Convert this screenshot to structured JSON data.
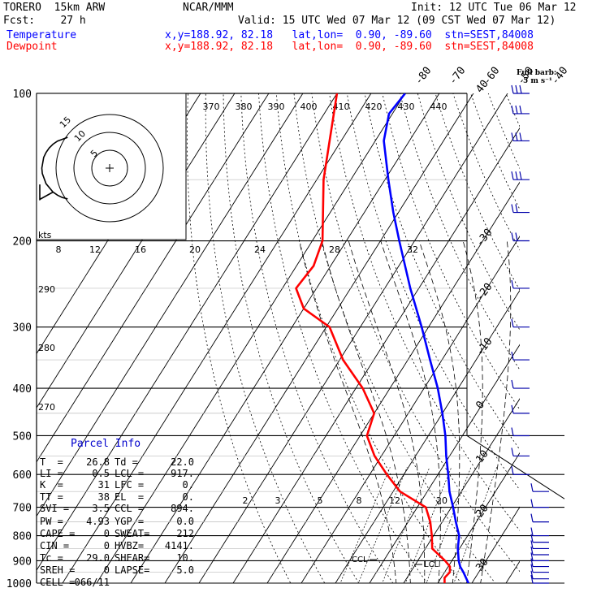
{
  "header": {
    "model": "TORERO  15km ARW",
    "org": "NCAR/MMM",
    "init": "Init: 12 UTC Tue 06 Mar 12",
    "fcst": "Fcst:    27 h",
    "valid": "Valid: 15 UTC Wed 07 Mar 12 (09 CST Wed 07 Mar 12)",
    "temperature_label": "Temperature",
    "dewpoint_label": "Dewpoint",
    "location": "x,y=188.92, 82.18   lat,lon=  0.90, -89.60  stn=SEST,84008"
  },
  "wind_legend": {
    "line1": "Full barb:",
    "line2": "5 m s⁻¹"
  },
  "hodograph": {
    "units_label": "kts",
    "ring_labels": [
      "5",
      "10",
      "15"
    ]
  },
  "parcel": {
    "title": "Parcel Info",
    "rows": [
      {
        "l1": "T  =",
        "v1": "26.8",
        "l2": "Td =",
        "v2": "22.0"
      },
      {
        "l1": "LI =",
        "v1": "0.5",
        "l2": "LCL =",
        "v2": "917."
      },
      {
        "l1": "K  =",
        "v1": "31",
        "l2": "LFC =",
        "v2": "0."
      },
      {
        "l1": "TT =",
        "v1": "38",
        "l2": "EL  =",
        "v2": "0."
      },
      {
        "l1": "SVI =",
        "v1": "3.5",
        "l2": "CCL =",
        "v2": "894."
      },
      {
        "l1": "PW =",
        "v1": "4.93",
        "l2": "YGP =",
        "v2": "0.0"
      },
      {
        "l1": "CAPE =",
        "v1": "0",
        "l2": "SWEAT=",
        "v2": "212"
      },
      {
        "l1": "CIN =",
        "v1": "0",
        "l2": "HVBZ=",
        "v2": "4141."
      },
      {
        "l1": "Tc =",
        "v1": "29.0",
        "l2": "SHEAR=",
        "v2": "10."
      },
      {
        "l1": "SREH =",
        "v1": "0",
        "l2": "LAPSE=",
        "v2": "5.0"
      },
      {
        "l1": "CELL =",
        "v1": "066/11",
        "l2": "",
        "v2": ""
      }
    ]
  },
  "colors": {
    "temperature": "#0000ff",
    "dewpoint": "#ff0000",
    "frame": "#000000"
  },
  "chart_data": {
    "type": "line",
    "subtype": "skew-T log-P sounding",
    "pressure_levels": [
      100,
      200,
      300,
      400,
      500,
      600,
      700,
      800,
      900,
      1000
    ],
    "pressure_labels": [
      "100",
      "200",
      "300",
      "400",
      "500",
      "600",
      "700",
      "800",
      "900",
      "1000"
    ],
    "isotherm_labels": [
      "-80",
      "-70",
      "-60",
      "-50",
      "-40",
      "-30",
      "-20",
      "-10",
      "0",
      "10",
      "20",
      "30",
      "40"
    ],
    "isotherm_values": [
      -80,
      -70,
      -60,
      -50,
      -40,
      -30,
      -20,
      -10,
      0,
      10,
      20,
      30,
      40
    ],
    "theta_labels": [
      "370",
      "380",
      "390",
      "400",
      "410",
      "420",
      "430",
      "440",
      "290",
      "280",
      "270"
    ],
    "mixing_ratio_labels": [
      "2",
      "3",
      "5",
      "8",
      "12",
      "20"
    ],
    "wind_speed_scale": [
      "8",
      "12",
      "16",
      "20",
      "24",
      "28",
      "32"
    ],
    "annotations": [
      "CCL",
      "LCL"
    ],
    "series": [
      {
        "name": "Temperature",
        "color": "#0000ff",
        "points": [
          {
            "p": 1000,
            "t": 29.0
          },
          {
            "p": 950,
            "t": 25.5
          },
          {
            "p": 925,
            "t": 23.5
          },
          {
            "p": 900,
            "t": 22.0
          },
          {
            "p": 850,
            "t": 19.5
          },
          {
            "p": 800,
            "t": 17.5
          },
          {
            "p": 750,
            "t": 14.0
          },
          {
            "p": 700,
            "t": 10.5
          },
          {
            "p": 650,
            "t": 6.5
          },
          {
            "p": 600,
            "t": 3.0
          },
          {
            "p": 550,
            "t": -1.0
          },
          {
            "p": 500,
            "t": -5.0
          },
          {
            "p": 450,
            "t": -10.0
          },
          {
            "p": 400,
            "t": -16.0
          },
          {
            "p": 350,
            "t": -23.5
          },
          {
            "p": 300,
            "t": -32.0
          },
          {
            "p": 250,
            "t": -42.5
          },
          {
            "p": 200,
            "t": -54.5
          },
          {
            "p": 175,
            "t": -61.5
          },
          {
            "p": 150,
            "t": -69.0
          },
          {
            "p": 125,
            "t": -77.5
          },
          {
            "p": 110,
            "t": -81.0
          },
          {
            "p": 100,
            "t": -80.0
          }
        ]
      },
      {
        "name": "Dewpoint",
        "color": "#ff0000",
        "points": [
          {
            "p": 1000,
            "t": 22.0
          },
          {
            "p": 975,
            "t": 21.0
          },
          {
            "p": 950,
            "t": 21.5
          },
          {
            "p": 925,
            "t": 20.5
          },
          {
            "p": 900,
            "t": 18.0
          },
          {
            "p": 850,
            "t": 12.0
          },
          {
            "p": 800,
            "t": 9.5
          },
          {
            "p": 750,
            "t": 6.5
          },
          {
            "p": 700,
            "t": 2.5
          },
          {
            "p": 650,
            "t": -8.0
          },
          {
            "p": 600,
            "t": -15.0
          },
          {
            "p": 550,
            "t": -22.0
          },
          {
            "p": 500,
            "t": -28.0
          },
          {
            "p": 450,
            "t": -30.0
          },
          {
            "p": 400,
            "t": -38.0
          },
          {
            "p": 350,
            "t": -49.0
          },
          {
            "p": 300,
            "t": -59.0
          },
          {
            "p": 275,
            "t": -70.0
          },
          {
            "p": 250,
            "t": -76.0
          },
          {
            "p": 225,
            "t": -75.0
          },
          {
            "p": 200,
            "t": -77.0
          },
          {
            "p": 150,
            "t": -88.0
          },
          {
            "p": 100,
            "t": -100.0
          }
        ]
      }
    ],
    "winds": [
      {
        "p": 1000,
        "speed_ms": 5,
        "dir": 170
      },
      {
        "p": 980,
        "speed_ms": 5,
        "dir": 150
      },
      {
        "p": 950,
        "speed_ms": 5,
        "dir": 150
      },
      {
        "p": 925,
        "speed_ms": 5,
        "dir": 140
      },
      {
        "p": 900,
        "speed_ms": 5,
        "dir": 140
      },
      {
        "p": 875,
        "speed_ms": 5,
        "dir": 130
      },
      {
        "p": 850,
        "speed_ms": 5,
        "dir": 120
      },
      {
        "p": 825,
        "speed_ms": 5,
        "dir": 110
      },
      {
        "p": 800,
        "speed_ms": 5,
        "dir": 110
      },
      {
        "p": 750,
        "speed_ms": 5,
        "dir": 90
      },
      {
        "p": 700,
        "speed_ms": 5,
        "dir": 80
      },
      {
        "p": 650,
        "speed_ms": 5,
        "dir": 60
      },
      {
        "p": 600,
        "speed_ms": 5,
        "dir": 40
      },
      {
        "p": 550,
        "speed_ms": 5,
        "dir": 30
      },
      {
        "p": 500,
        "speed_ms": 5,
        "dir": 20
      },
      {
        "p": 450,
        "speed_ms": 5,
        "dir": 10
      },
      {
        "p": 400,
        "speed_ms": 5,
        "dir": 20
      },
      {
        "p": 350,
        "speed_ms": 5,
        "dir": 30
      },
      {
        "p": 300,
        "speed_ms": 5,
        "dir": 30
      },
      {
        "p": 250,
        "speed_ms": 5,
        "dir": 40
      },
      {
        "p": 200,
        "speed_ms": 10,
        "dir": 60
      },
      {
        "p": 175,
        "speed_ms": 10,
        "dir": 70
      },
      {
        "p": 150,
        "speed_ms": 15,
        "dir": 80
      },
      {
        "p": 125,
        "speed_ms": 15,
        "dir": 80
      },
      {
        "p": 110,
        "speed_ms": 15,
        "dir": 80
      },
      {
        "p": 100,
        "speed_ms": 15,
        "dir": 70
      }
    ]
  }
}
